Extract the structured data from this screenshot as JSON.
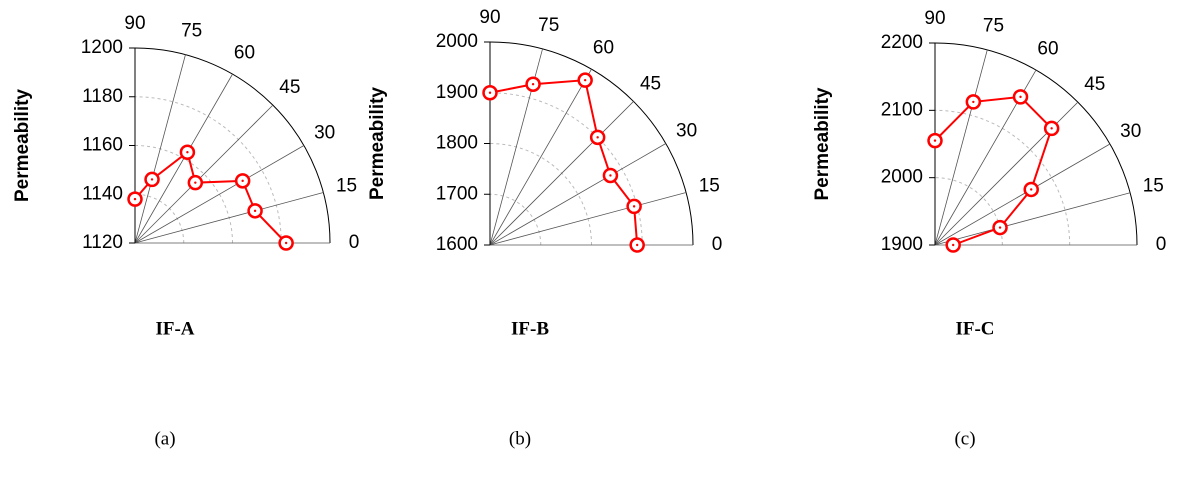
{
  "chart_data": [
    {
      "type": "polar",
      "ylabel": "Permeability",
      "label": "IF-A",
      "caption": "(a)",
      "x": [
        0,
        15,
        30,
        45,
        60,
        75,
        90
      ],
      "values": [
        1182,
        1171,
        1171,
        1155,
        1163,
        1147,
        1138
      ],
      "color": "#ff0000",
      "xlim": [
        0,
        90
      ],
      "xticks": [
        0,
        15,
        30,
        45,
        60,
        75,
        90
      ],
      "ylim": [
        1120,
        1200
      ],
      "yticks": [
        1120,
        1140,
        1160,
        1180,
        1200
      ]
    },
    {
      "type": "polar",
      "ylabel": "Permeability",
      "label": "IF-B",
      "caption": "(b)",
      "x": [
        0,
        15,
        30,
        45,
        60,
        75,
        90
      ],
      "values": [
        1890,
        1894,
        1874,
        1900,
        1975,
        1928,
        1900
      ],
      "color": "#ff0000",
      "xlim": [
        0,
        90
      ],
      "xticks": [
        0,
        15,
        30,
        45,
        60,
        75,
        90
      ],
      "ylim": [
        1600,
        2000
      ],
      "yticks": [
        1600,
        1700,
        1800,
        1900,
        2000
      ]
    },
    {
      "type": "polar",
      "ylabel": "Permeability",
      "label": "IF-C",
      "caption": "(c)",
      "x": [
        0,
        15,
        30,
        45,
        60,
        75,
        90
      ],
      "values": [
        1927,
        2000,
        2065,
        2145,
        2154,
        2120,
        2055
      ],
      "color": "#ff0000",
      "xlim": [
        0,
        90
      ],
      "xticks": [
        0,
        15,
        30,
        45,
        60,
        75,
        90
      ],
      "ylim": [
        1900,
        2200
      ],
      "yticks": [
        1900,
        2000,
        2100,
        2200
      ]
    }
  ]
}
